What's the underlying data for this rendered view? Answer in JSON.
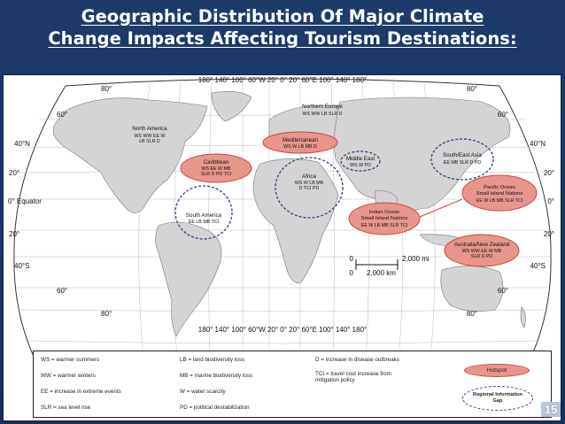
{
  "slide": {
    "title_line1": "Geographic Distribution Of Major Climate",
    "title_line2": "Change Impacts Affecting Tourism Destinations:",
    "number": "15"
  },
  "map": {
    "top_longitudes": "180°  140°   100°   60°W   20°  0°  20°    60°E    100°   140°   180°",
    "bottom_longitudes": "180°  140°   100°   60°W   20°  0°  20°    60°E    100°   140°   180°",
    "latitudes_left": [
      "80°",
      "60°",
      "40°N",
      "20°",
      "0°  Equator",
      "20°",
      "40°S",
      "60°",
      "80°"
    ],
    "latitudes_right": [
      "80°",
      "60°",
      "40°N",
      "20°",
      "0°",
      "20°",
      "40°S",
      "60°",
      "80°"
    ],
    "scale": {
      "miles_zero": "0",
      "miles": "2,000 mi",
      "km_zero": "0",
      "km": "2,000 km"
    },
    "regions": [
      {
        "name": "North America",
        "codes": "WS WW EE W\nLB SLR D"
      },
      {
        "name": "Northern Europe",
        "codes": "WS WW LB SLR D"
      },
      {
        "name": "Mediterranean",
        "codes": "WS W LB MB D"
      },
      {
        "name": "Caribbean",
        "codes": "WS EE W MB\nSLR D PD TCI"
      },
      {
        "name": "Middle East",
        "codes": "WS W PD"
      },
      {
        "name": "Africa",
        "codes": "WS W LB MB\nD TCI PD"
      },
      {
        "name": "South/East Asia",
        "codes": "EE MB SLR D PD"
      },
      {
        "name": "Pacific Ocean\nSmall Island Nations",
        "codes": "EE W LB MB SLR TCI"
      },
      {
        "name": "Indian Ocean\nSmall Island Nations",
        "codes": "EE W LB MB SLR TCI"
      },
      {
        "name": "South America",
        "codes": "EE LB MB TCI"
      },
      {
        "name": "Australia/New Zealand",
        "codes": "WS WW EE W MB\nSLR D PD"
      }
    ]
  },
  "legend": {
    "ws": "WS = warmer summers",
    "ww": "WW = warmer winters",
    "ee": "EE = increase in extreme events",
    "slr": "SLR = sea level rise",
    "lb": "LB = land biodiversity loss",
    "mb": "MB = marine biodiversity loss",
    "w": "W = water scarcity",
    "pd": "PD = political destabilization",
    "d": "D = increase in disease outbreaks",
    "tci": "TCI = travel cost increase from\nmitigation policy",
    "hotspot": "Hotspot",
    "gap": "Regional Information\nGap"
  },
  "colors": {
    "background": "#1d3a6b",
    "land": "#d4d4d4",
    "hotspot_fill": "#e8958e",
    "gap_outline": "#2b3f80"
  }
}
